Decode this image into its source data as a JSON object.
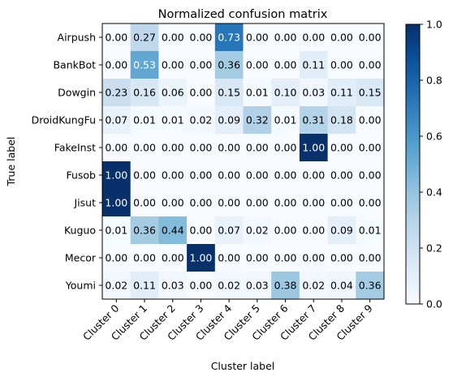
{
  "chart_data": {
    "type": "heatmap",
    "title": "Normalized confusion matrix",
    "xlabel": "Cluster label",
    "ylabel": "True label",
    "x_categories": [
      "Cluster 0",
      "Cluster 1",
      "Cluster 2",
      "Cluster 3",
      "Cluster 4",
      "Cluster 5",
      "Cluster 6",
      "Cluster 7",
      "Cluster 8",
      "Cluster 9"
    ],
    "y_categories": [
      "Airpush",
      "BankBot",
      "Dowgin",
      "DroidKungFu",
      "FakeInst",
      "Fusob",
      "Jisut",
      "Kuguo",
      "Mecor",
      "Youmi"
    ],
    "values": [
      [
        0.0,
        0.27,
        0.0,
        0.0,
        0.73,
        0.0,
        0.0,
        0.0,
        0.0,
        0.0
      ],
      [
        0.0,
        0.53,
        0.0,
        0.0,
        0.36,
        0.0,
        0.0,
        0.11,
        0.0,
        0.0
      ],
      [
        0.23,
        0.16,
        0.06,
        0.0,
        0.15,
        0.01,
        0.1,
        0.03,
        0.11,
        0.15
      ],
      [
        0.07,
        0.01,
        0.01,
        0.02,
        0.09,
        0.32,
        0.01,
        0.31,
        0.18,
        0.0
      ],
      [
        0.0,
        0.0,
        0.0,
        0.0,
        0.0,
        0.0,
        0.0,
        1.0,
        0.0,
        0.0
      ],
      [
        1.0,
        0.0,
        0.0,
        0.0,
        0.0,
        0.0,
        0.0,
        0.0,
        0.0,
        0.0
      ],
      [
        1.0,
        0.0,
        0.0,
        0.0,
        0.0,
        0.0,
        0.0,
        0.0,
        0.0,
        0.0
      ],
      [
        0.01,
        0.36,
        0.44,
        0.0,
        0.07,
        0.02,
        0.0,
        0.0,
        0.09,
        0.01
      ],
      [
        0.0,
        0.0,
        0.0,
        1.0,
        0.0,
        0.0,
        0.0,
        0.0,
        0.0,
        0.0
      ],
      [
        0.02,
        0.11,
        0.03,
        0.0,
        0.02,
        0.03,
        0.38,
        0.02,
        0.04,
        0.36
      ]
    ],
    "value_range": [
      0.0,
      1.0
    ],
    "colormap": "Blues",
    "colorbar_ticks": [
      "0.0",
      "0.2",
      "0.4",
      "0.6",
      "0.8",
      "1.0"
    ],
    "grid": false
  }
}
